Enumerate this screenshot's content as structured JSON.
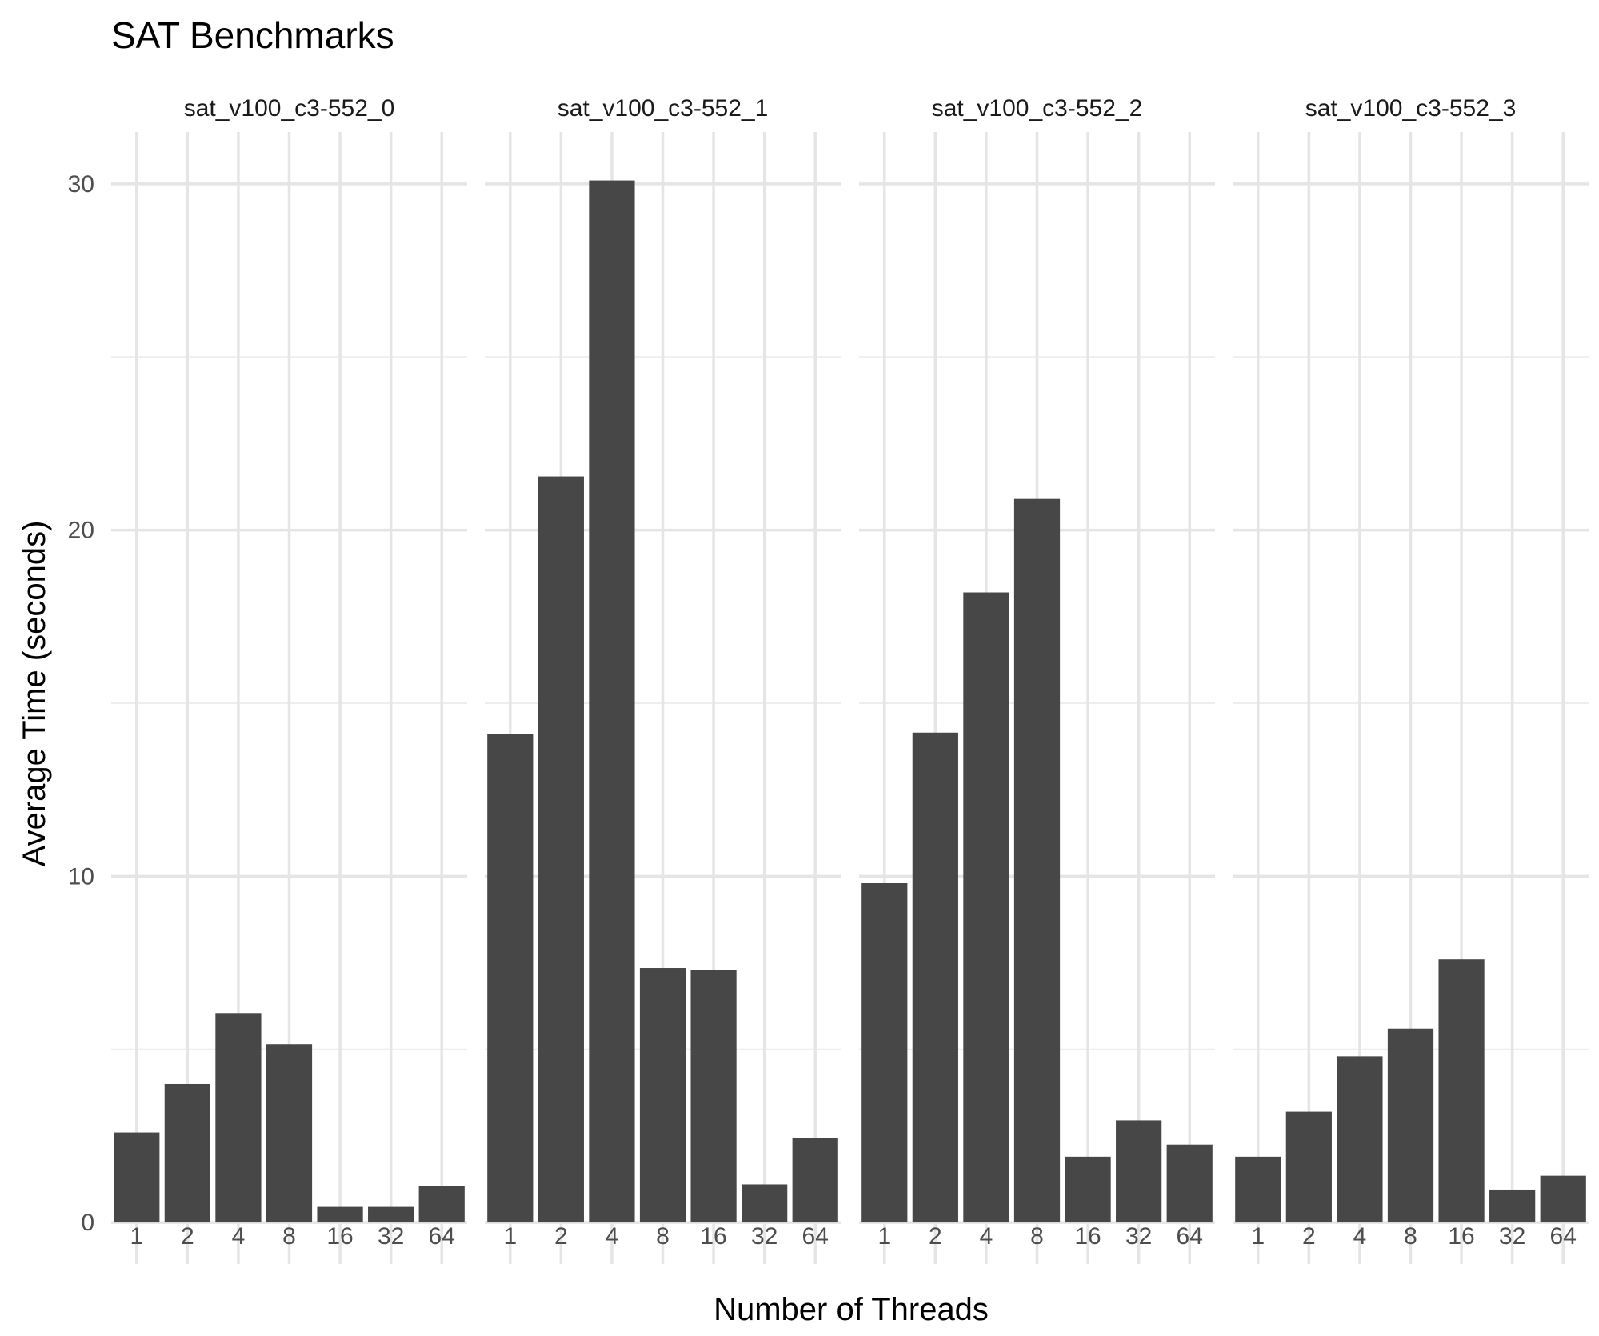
{
  "chart_data": {
    "type": "bar",
    "title": "SAT Benchmarks",
    "xlabel": "Number of Threads",
    "ylabel": "Average Time (seconds)",
    "categories": [
      "1",
      "2",
      "4",
      "8",
      "16",
      "32",
      "64"
    ],
    "yticks": [
      "0",
      "10",
      "20",
      "30"
    ],
    "ylim": [
      -1.2,
      31.5
    ],
    "grid": true,
    "bar_color": "#474747",
    "panels": [
      {
        "name": "sat_v100_c3-552_0",
        "values": [
          2.6,
          4.0,
          6.05,
          5.15,
          0.45,
          0.45,
          1.05
        ]
      },
      {
        "name": "sat_v100_c3-552_1",
        "values": [
          14.1,
          21.55,
          30.1,
          7.35,
          7.3,
          1.1,
          2.45
        ]
      },
      {
        "name": "sat_v100_c3-552_2",
        "values": [
          9.8,
          14.15,
          18.2,
          20.9,
          1.9,
          2.95,
          2.25
        ]
      },
      {
        "name": "sat_v100_c3-552_3",
        "values": [
          1.9,
          3.2,
          4.8,
          5.6,
          7.6,
          0.95,
          1.35
        ]
      }
    ]
  }
}
